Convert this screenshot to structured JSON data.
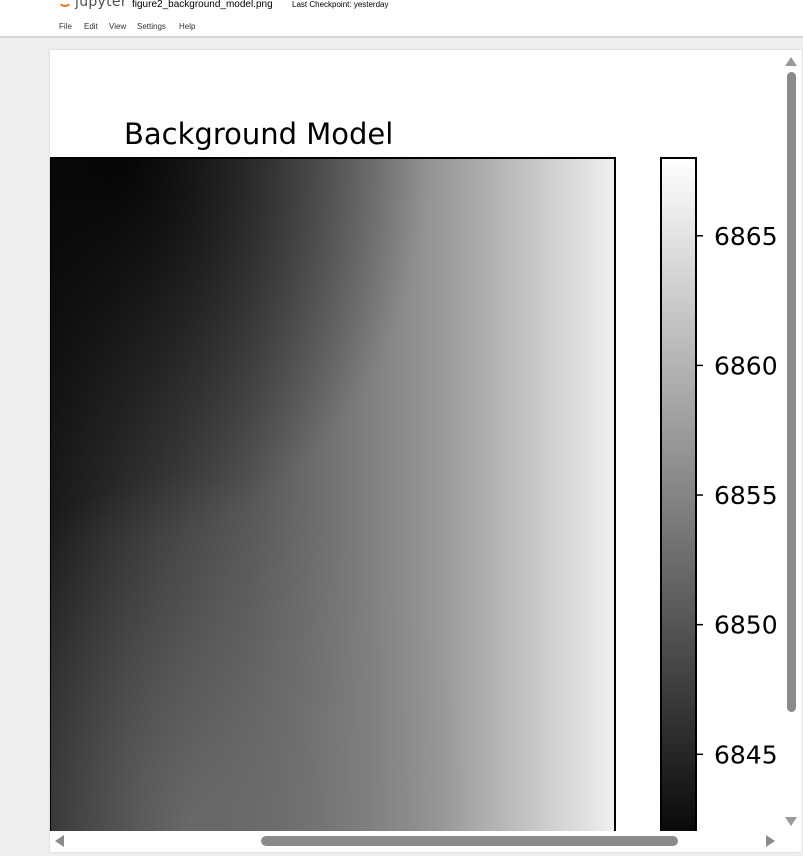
{
  "app": {
    "logo_text": "jupyter",
    "document_title": "figure2_background_model.png",
    "checkpoint": "Last Checkpoint: yesterday"
  },
  "menu": {
    "items": [
      "File",
      "Edit",
      "View",
      "Settings",
      "Help"
    ]
  },
  "colors": {
    "logo_accent": "#f37726",
    "scrollbar_thumb": "#8a8a8a"
  },
  "chart_data": {
    "type": "heatmap",
    "title": "Background Model",
    "colormap": "gray",
    "description_values": {
      "top_left": 6841,
      "top_right": 6868,
      "bottom_left": 6848,
      "bottom_right": 6866,
      "middle": 6853
    },
    "colorbar": {
      "range": [
        6841,
        6868
      ],
      "ticks": [
        6845,
        6850,
        6855,
        6860,
        6865
      ],
      "tick_labels": [
        "6845",
        "6850",
        "6855",
        "6860",
        "6865"
      ]
    }
  }
}
